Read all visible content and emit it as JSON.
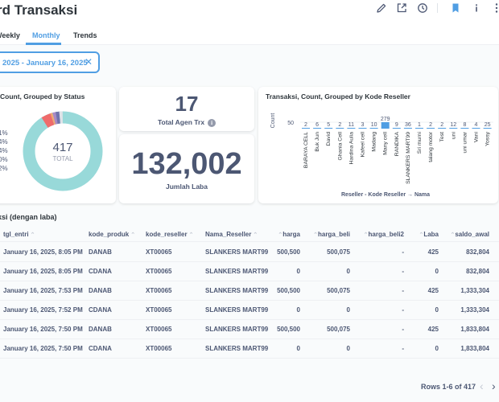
{
  "header": {
    "title": "rd Transaksi"
  },
  "tabs": [
    {
      "label": "Weekly"
    },
    {
      "label": "Monthly"
    },
    {
      "label": "Trends"
    }
  ],
  "filter": {
    "value": "2025 - January 16, 2025"
  },
  "status_card": {
    "title": "Count, Grouped by Status",
    "total": "417",
    "total_label": "TOTAL",
    "legend": [
      "1%",
      "4%",
      "4%",
      "0%",
      "2%"
    ],
    "segment_colors": [
      "#98d9d9",
      "#ef6b6b",
      "#f2a86f",
      "#a989c5",
      "#7172ad",
      "#dfe3e8"
    ]
  },
  "agen_card": {
    "value": "17",
    "label": "Total Agen Trx",
    "info": "i"
  },
  "laba_card": {
    "value": "132,002",
    "label": "Jumlah Laba"
  },
  "reseller_chart": {
    "title": "Transaksi, Count, Grouped by Kode Reseller",
    "ylabel": "Count",
    "ytick": "50",
    "xlabel": "Reseller - Kode Reseller → Nama",
    "bar_color": "#509ee3"
  },
  "chart_data": {
    "type": "bar",
    "title": "Transaksi, Count, Grouped by Kode Reseller",
    "xlabel": "Reseller - Kode Reseller → Nama",
    "ylabel": "Count",
    "categories": [
      "BARAYA CELL",
      "Buk Jun",
      "David",
      "Ghania Cell",
      "Hardina Aulia",
      "Kafeel cell",
      "Madang",
      "Many cell",
      "RANDIKA",
      "SLANKERS MART99",
      "Sri murni",
      "talang motor",
      "Test",
      "uni",
      "uni umar",
      "Vani",
      "Yossy"
    ],
    "value_labels": [
      "2",
      "6",
      "5",
      "2",
      "11",
      "3",
      "10",
      "279",
      "9",
      "36",
      "1",
      "2",
      "2",
      "12",
      "8",
      "4",
      "25"
    ],
    "values": [
      2,
      6,
      5,
      2,
      11,
      3,
      10,
      279,
      9,
      36,
      1,
      2,
      2,
      12,
      8,
      4,
      25
    ],
    "series": [
      {
        "name": "Count",
        "values": [
          2,
          6,
          5,
          2,
          11,
          3,
          10,
          279,
          9,
          36,
          1,
          2,
          2,
          12,
          8,
          4,
          25
        ]
      }
    ]
  },
  "table": {
    "title": "ksi (dengan laba)",
    "columns": [
      "tgl_entri",
      "kode_produk",
      "kode_reseller",
      "Nama_Reseller",
      "harga",
      "harga_beli",
      "harga_beli2",
      "Laba",
      "saldo_awal"
    ],
    "rows": [
      [
        "January 16, 2025, 8:05 PM",
        "DANAB",
        "XT00065",
        "SLANKERS MART99",
        "500,500",
        "500,075",
        "-",
        "425",
        "832,804"
      ],
      [
        "January 16, 2025, 8:05 PM",
        "CDANA",
        "XT00065",
        "SLANKERS MART99",
        "0",
        "0",
        "-",
        "0",
        "832,804"
      ],
      [
        "January 16, 2025, 7:53 PM",
        "DANAB",
        "XT00065",
        "SLANKERS MART99",
        "500,500",
        "500,075",
        "-",
        "425",
        "1,333,304"
      ],
      [
        "January 16, 2025, 7:52 PM",
        "CDANA",
        "XT00065",
        "SLANKERS MART99",
        "0",
        "0",
        "-",
        "0",
        "1,333,304"
      ],
      [
        "January 16, 2025, 7:50 PM",
        "DANAB",
        "XT00065",
        "SLANKERS MART99",
        "500,500",
        "500,075",
        "-",
        "425",
        "1,833,804"
      ],
      [
        "January 16, 2025, 7:50 PM",
        "CDANA",
        "XT00065",
        "SLANKERS MART99",
        "0",
        "0",
        "-",
        "0",
        "1,833,804"
      ]
    ],
    "footer": "Rows 1-6 of 417"
  }
}
